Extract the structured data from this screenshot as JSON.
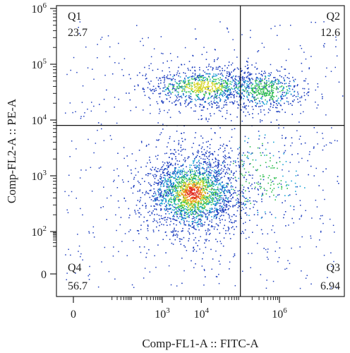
{
  "chart_data": {
    "type": "scatter",
    "subtype": "flow-cytometry-density-dot-plot",
    "xlabel": "Comp-FL1-A :: FITC-A",
    "ylabel": "Comp-FL2-A :: PE-A",
    "x_scale": "biexponential",
    "y_scale": "biexponential",
    "x_ticks": [
      {
        "value": 0,
        "base": "0",
        "exp": ""
      },
      {
        "value": 1000,
        "base": "10",
        "exp": "3"
      },
      {
        "value": 10000,
        "base": "10",
        "exp": "4"
      },
      {
        "value": 1000000,
        "base": "10",
        "exp": "6"
      }
    ],
    "y_ticks": [
      {
        "value": 0,
        "base": "0",
        "exp": ""
      },
      {
        "value": 100,
        "base": "10",
        "exp": "2"
      },
      {
        "value": 1000,
        "base": "10",
        "exp": "3"
      },
      {
        "value": 10000,
        "base": "10",
        "exp": "4"
      },
      {
        "value": 100000,
        "base": "10",
        "exp": "5"
      },
      {
        "value": 1000000,
        "base": "10",
        "exp": "6"
      }
    ],
    "gate": {
      "x": 100000,
      "y": 8000
    },
    "quadrants": [
      {
        "name": "Q1",
        "percent": "23.7"
      },
      {
        "name": "Q2",
        "percent": "12.6"
      },
      {
        "name": "Q3",
        "percent": "6.94"
      },
      {
        "name": "Q4",
        "percent": "56.7"
      }
    ],
    "populations": [
      {
        "x_center": 6000,
        "y_center": 500,
        "share": 0.55
      },
      {
        "x_center": 12000,
        "y_center": 40000,
        "share": 0.22
      },
      {
        "x_center": 400000,
        "y_center": 35000,
        "share": 0.12
      },
      {
        "x_center": 300000,
        "y_center": 900,
        "share": 0.06
      }
    ],
    "density_colors": [
      "#1f3fbf",
      "#1aa5d6",
      "#2fbf4f",
      "#d6d62a",
      "#f08a1e",
      "#e0261c"
    ],
    "grid": false,
    "legend": "none"
  }
}
